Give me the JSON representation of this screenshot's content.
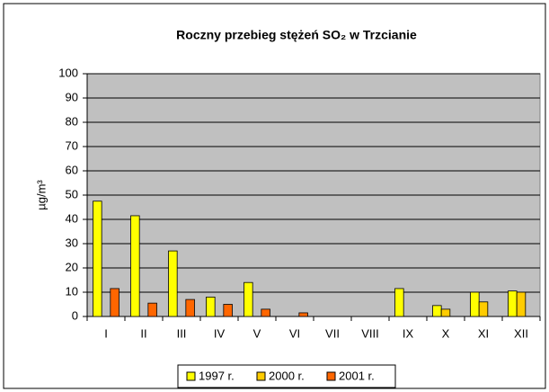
{
  "chart_data": {
    "type": "bar",
    "title": "Roczny przebieg stężeń SO₂ w Trzcianie",
    "y_label": "µg/m³",
    "categories": [
      "I",
      "II",
      "III",
      "IV",
      "V",
      "VI",
      "VII",
      "VIII",
      "IX",
      "X",
      "XI",
      "XII"
    ],
    "series": [
      {
        "name": "1997 r.",
        "color": "#ffff00",
        "values": [
          47.5,
          41.5,
          27,
          8,
          14,
          null,
          null,
          null,
          11.5,
          4.5,
          10,
          10.5
        ]
      },
      {
        "name": "2000 r.",
        "color": "#ffcc00",
        "values": [
          null,
          null,
          null,
          null,
          null,
          null,
          null,
          null,
          null,
          3,
          6,
          10
        ]
      },
      {
        "name": "2001 r.",
        "color": "#ff6600",
        "values": [
          11.5,
          5.5,
          7,
          5,
          3,
          1.5,
          null,
          null,
          null,
          null,
          null,
          null
        ]
      }
    ],
    "ylim": [
      0,
      100
    ],
    "yticks": [
      0,
      10,
      20,
      30,
      40,
      50,
      60,
      70,
      80,
      90,
      100
    ],
    "grid": true,
    "legend": "bottom",
    "plot_background": "#c0c0c0"
  }
}
